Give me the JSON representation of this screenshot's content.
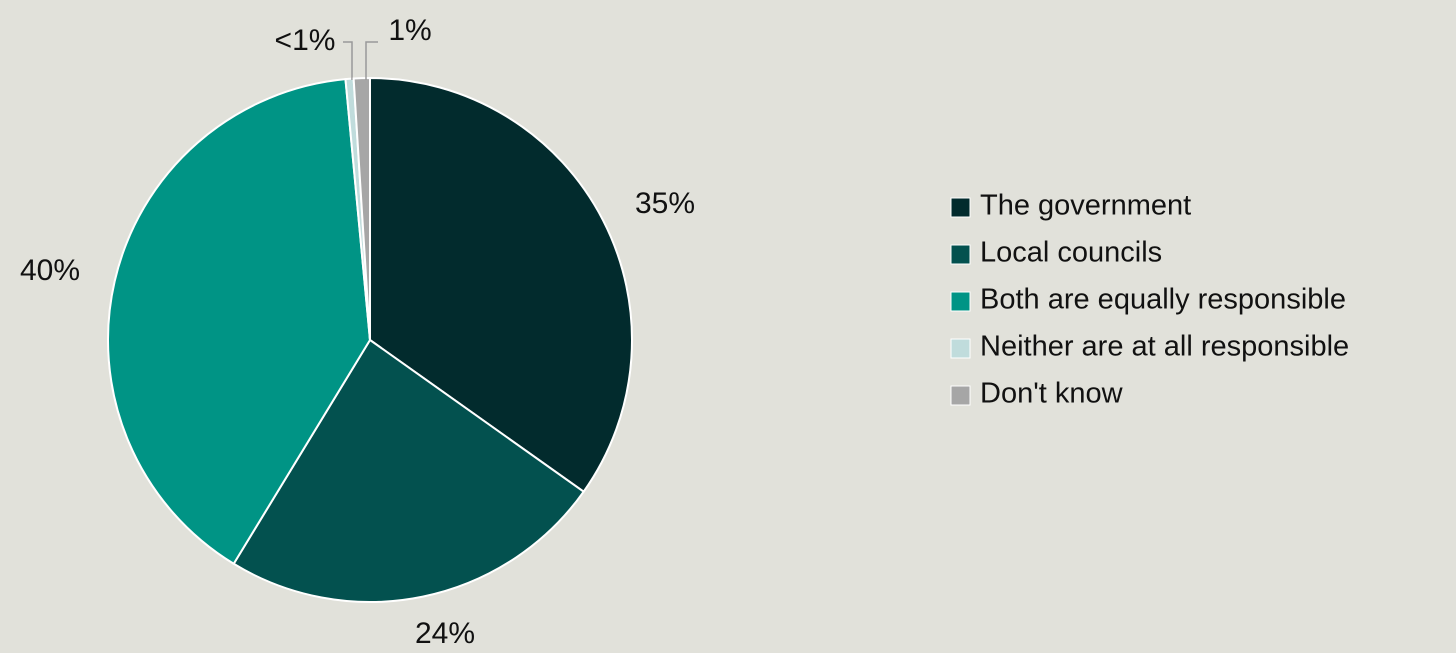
{
  "chart_data": {
    "type": "pie",
    "categories": [
      "The government",
      "Local councils",
      "Both are equally responsible",
      "Neither are at all responsible",
      "Don't know"
    ],
    "values": [
      35,
      24,
      40,
      0.5,
      1
    ],
    "value_labels": [
      "35%",
      "24%",
      "40%",
      "<1%",
      "1%"
    ],
    "colors": [
      "#022b2d",
      "#03514f",
      "#009485",
      "#c0dcdc",
      "#a6a6a6"
    ],
    "legend": "right"
  }
}
